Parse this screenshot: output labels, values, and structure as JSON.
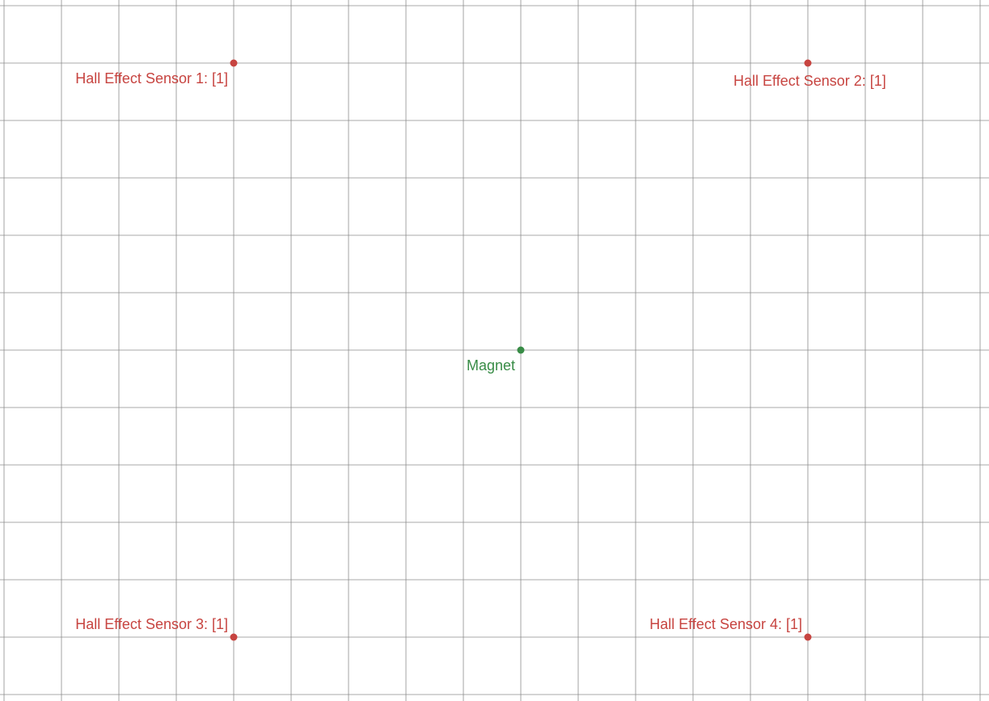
{
  "colors": {
    "background": "#ffffff",
    "grid": "#8c8c8c",
    "sensor": "#c74440",
    "magnet": "#388c46"
  },
  "points": {
    "sensor_1": {
      "label": "Hall Effect Sensor 1: [1]",
      "x": -5,
      "y": 5
    },
    "sensor_2": {
      "label": "Hall Effect Sensor 2: [1]",
      "x": 5,
      "y": 5
    },
    "sensor_3": {
      "label": "Hall Effect Sensor 3: [1]",
      "x": -5,
      "y": -5
    },
    "sensor_4": {
      "label": "Hall Effect Sensor 4: [1]",
      "x": 5,
      "y": -5
    },
    "magnet": {
      "label": "Magnet",
      "x": 0,
      "y": 0
    }
  }
}
